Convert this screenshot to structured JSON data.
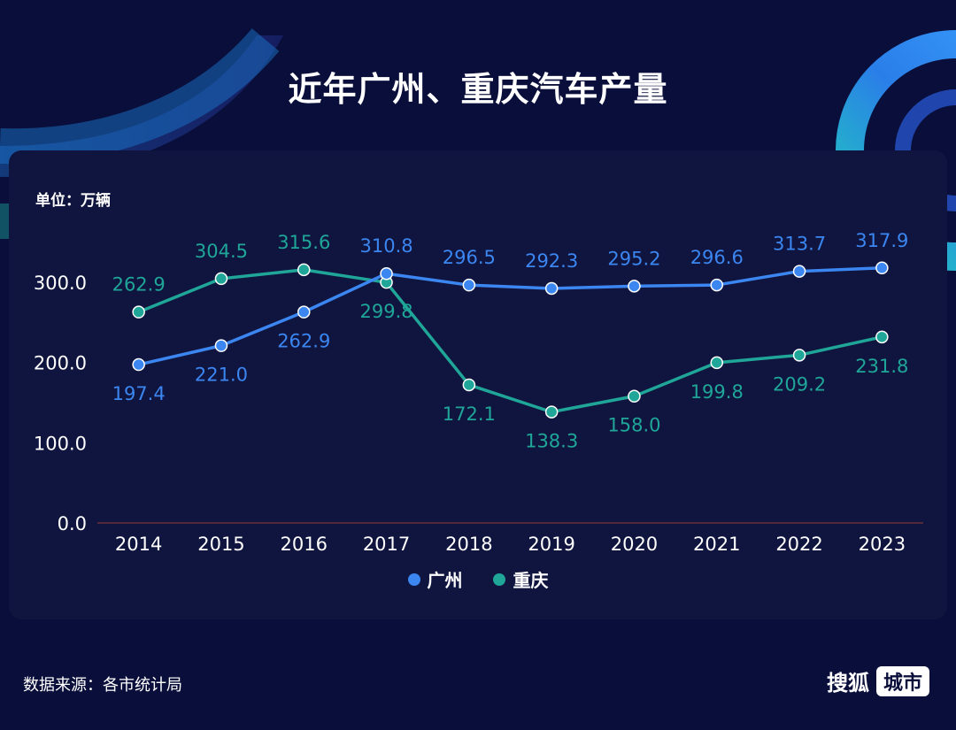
{
  "title": "近年广州、重庆汽车产量",
  "unit_label": "单位：万辆",
  "source": "数据来源：各市统计局",
  "brand": {
    "name": "搜狐",
    "badge": "城市"
  },
  "colors": {
    "background": "#0a0e3a",
    "panel": "#10153f",
    "guangzhou": "#3b86f0",
    "chongqing": "#1fa698",
    "axis_text": "#ffffff",
    "axis_line": "#6b2f3a"
  },
  "chart_data": {
    "type": "line",
    "title": "近年广州、重庆汽车产量",
    "ylabel": "单位：万辆",
    "xlabel": "",
    "x": [
      "2014",
      "2015",
      "2016",
      "2017",
      "2018",
      "2019",
      "2020",
      "2021",
      "2022",
      "2023"
    ],
    "ylim": [
      0,
      300
    ],
    "yticks": [
      "0.0",
      "100.0",
      "200.0",
      "300.0"
    ],
    "grid": false,
    "legend_position": "bottom-center",
    "series": [
      {
        "name": "广州",
        "values": [
          197.4,
          221.0,
          262.9,
          310.8,
          296.5,
          292.3,
          295.2,
          296.6,
          313.7,
          317.9
        ],
        "labels": [
          "197.4",
          "221.0",
          "262.9",
          "310.8",
          "296.5",
          "292.3",
          "295.2",
          "296.6",
          "313.7",
          "317.9"
        ]
      },
      {
        "name": "重庆",
        "values": [
          262.9,
          304.5,
          315.6,
          299.8,
          172.1,
          138.3,
          158.0,
          199.8,
          209.2,
          231.8
        ],
        "labels": [
          "262.9",
          "304.5",
          "315.6",
          "299.8",
          "172.1",
          "138.3",
          "158.0",
          "199.8",
          "209.2",
          "231.8"
        ]
      }
    ]
  }
}
